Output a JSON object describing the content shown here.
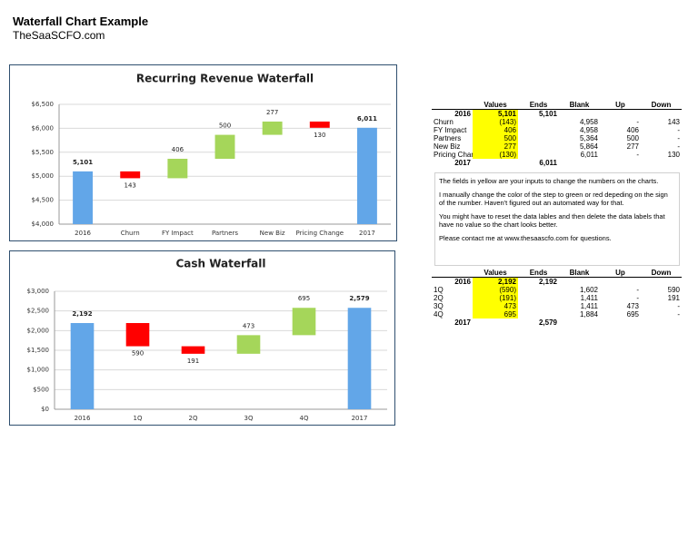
{
  "header": {
    "title": "Waterfall Chart Example",
    "subtitle": "TheSaaSCFO.com"
  },
  "chart_data": [
    {
      "type": "waterfall",
      "title": "Recurring Revenue Waterfall",
      "categories": [
        "2016",
        "Churn",
        "FY Impact",
        "Partners",
        "New Biz",
        "Pricing Change",
        "2017"
      ],
      "values": [
        5101,
        -143,
        406,
        500,
        277,
        -130,
        6011
      ],
      "value_labels": [
        "5,101",
        "143",
        "406",
        "500",
        "277",
        "130",
        "6,011"
      ],
      "colors": {
        "total": "#62a6e8",
        "up": "#a5d65a",
        "down": "#ff0000"
      },
      "ylim": [
        4000,
        6500
      ],
      "yticks": [
        {
          "value": 4000,
          "label": "$4,000"
        },
        {
          "value": 4500,
          "label": "$4,500"
        },
        {
          "value": 5000,
          "label": "$5,000"
        },
        {
          "value": 5500,
          "label": "$5,500"
        },
        {
          "value": 6000,
          "label": "$6,000"
        },
        {
          "value": 6500,
          "label": "$6,500"
        }
      ],
      "grid": true
    },
    {
      "type": "waterfall",
      "title": "Cash Waterfall",
      "categories": [
        "2016",
        "1Q",
        "2Q",
        "3Q",
        "4Q",
        "2017"
      ],
      "values": [
        2192,
        -590,
        -191,
        473,
        695,
        2579
      ],
      "value_labels": [
        "2,192",
        "590",
        "191",
        "473",
        "695",
        "2,579"
      ],
      "colors": {
        "total": "#62a6e8",
        "up": "#a5d65a",
        "down": "#ff0000"
      },
      "ylim": [
        0,
        3000
      ],
      "yticks": [
        {
          "value": 0,
          "label": "$0"
        },
        {
          "value": 500,
          "label": "$500"
        },
        {
          "value": 1000,
          "label": "$1,000"
        },
        {
          "value": 1500,
          "label": "$1,500"
        },
        {
          "value": 2000,
          "label": "$2,000"
        },
        {
          "value": 2500,
          "label": "$2,500"
        },
        {
          "value": 3000,
          "label": "$3,000"
        }
      ],
      "grid": true
    }
  ],
  "tables": [
    {
      "columns": [
        null,
        "Values",
        "Ends",
        "Blank",
        "Up",
        "Down"
      ],
      "rows": [
        [
          "2016",
          "5,101",
          "5,101",
          null,
          null,
          null
        ],
        [
          "Churn",
          "(143)",
          null,
          "4,958",
          "-",
          "143"
        ],
        [
          "FY Impact",
          "406",
          null,
          "4,958",
          "406",
          "-"
        ],
        [
          "Partners",
          "500",
          null,
          "5,364",
          "500",
          "-"
        ],
        [
          "New Biz",
          "277",
          null,
          "5,864",
          "277",
          "-"
        ],
        [
          "Pricing Chang",
          "(130)",
          null,
          "6,011",
          "-",
          "130"
        ],
        [
          "2017",
          null,
          "6,011",
          null,
          null,
          null
        ]
      ]
    },
    {
      "columns": [
        null,
        "Values",
        "Ends",
        "Blank",
        "Up",
        "Down"
      ],
      "rows": [
        [
          "2016",
          "2,192",
          "2,192",
          null,
          null,
          null
        ],
        [
          "1Q",
          "(590)",
          null,
          "1,602",
          "-",
          "590"
        ],
        [
          "2Q",
          "(191)",
          null,
          "1,411",
          "-",
          "191"
        ],
        [
          "3Q",
          "473",
          null,
          "1,411",
          "473",
          "-"
        ],
        [
          "4Q",
          "695",
          null,
          "1,884",
          "695",
          "-"
        ],
        [
          "2017",
          null,
          "2,579",
          null,
          null,
          null
        ]
      ]
    }
  ],
  "notes": [
    "The fields in yellow are your inputs to change the numbers on the charts.",
    "I manually change the color of the step to green or red depeding on the sign of the number.  Haven't figured out an automated way for that.",
    "You might have to reset the data lables and then delete the data labels that have no value so the chart looks better.",
    "Please contact me at www.thesaascfo.com for questions."
  ]
}
